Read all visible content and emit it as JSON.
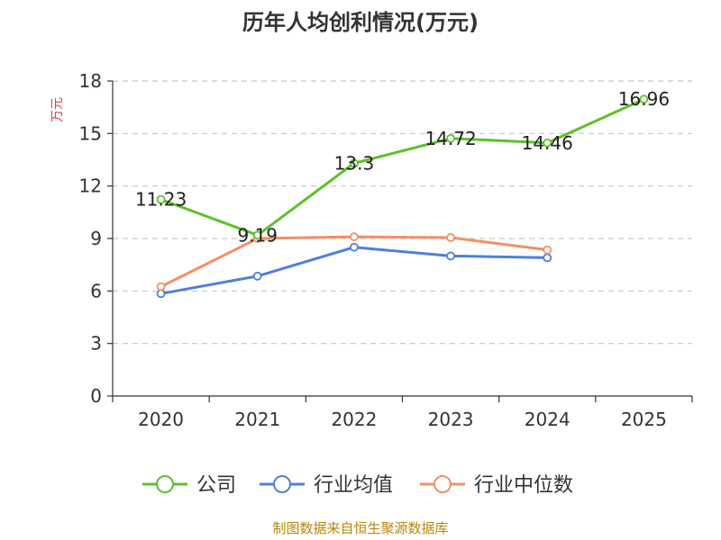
{
  "chart_data": {
    "type": "line",
    "title": "历年人均创利情况(万元)",
    "ylabel": "万元",
    "xlabel": "",
    "categories": [
      "2020",
      "2021",
      "2022",
      "2023",
      "2024",
      "2025"
    ],
    "yticks": [
      0,
      3,
      6,
      9,
      12,
      15,
      18
    ],
    "ylim": [
      0,
      18
    ],
    "grid": true,
    "legend_position": "bottom",
    "series": [
      {
        "name": "公司",
        "color": "#5cc12b",
        "values": [
          11.23,
          9.19,
          13.3,
          14.72,
          14.46,
          16.96
        ],
        "labels": [
          "11.23",
          "9.19",
          "13.3",
          "14.72",
          "14.46",
          "16.96"
        ]
      },
      {
        "name": "行业均值",
        "color": "#4f7fdc",
        "values": [
          5.85,
          6.85,
          8.5,
          8.0,
          7.9,
          null
        ]
      },
      {
        "name": "行业中位数",
        "color": "#f39060",
        "values": [
          6.25,
          9.0,
          9.1,
          9.05,
          8.35,
          null
        ]
      }
    ]
  },
  "source_note": "制图数据来自恒生聚源数据库"
}
